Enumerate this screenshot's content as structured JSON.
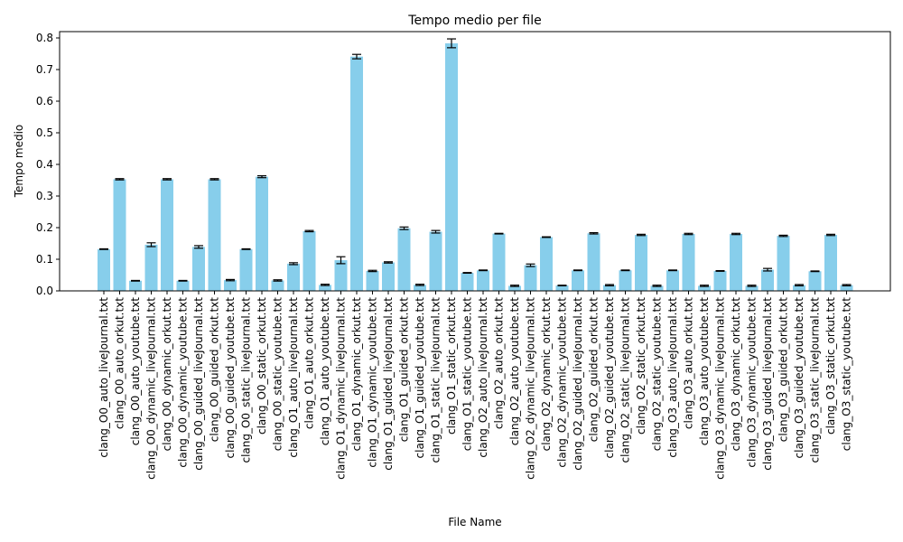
{
  "chart_data": {
    "type": "bar",
    "title": "Tempo medio per file",
    "xlabel": "File Name",
    "ylabel": "Tempo medio",
    "ylim": [
      0,
      0.82
    ],
    "yticks": [
      0.0,
      0.1,
      0.2,
      0.3,
      0.4,
      0.5,
      0.6,
      0.7,
      0.8
    ],
    "ytick_labels": [
      "0.0",
      "0.1",
      "0.2",
      "0.3",
      "0.4",
      "0.5",
      "0.6",
      "0.7",
      "0.8"
    ],
    "grid": false,
    "bar_color": "#87ceeb",
    "error_color": "#000000",
    "categories": [
      "clang_O0_auto_liveJournal.txt",
      "clang_O0_auto_orkut.txt",
      "clang_O0_auto_youtube.txt",
      "clang_O0_dynamic_liveJournal.txt",
      "clang_O0_dynamic_orkut.txt",
      "clang_O0_dynamic_youtube.txt",
      "clang_O0_guided_liveJournal.txt",
      "clang_O0_guided_orkut.txt",
      "clang_O0_guided_youtube.txt",
      "clang_O0_static_liveJournal.txt",
      "clang_O0_static_orkut.txt",
      "clang_O0_static_youtube.txt",
      "clang_O1_auto_liveJournal.txt",
      "clang_O1_auto_orkut.txt",
      "clang_O1_auto_youtube.txt",
      "clang_O1_dynamic_liveJournal.txt",
      "clang_O1_dynamic_orkut.txt",
      "clang_O1_dynamic_youtube.txt",
      "clang_O1_guided_liveJournal.txt",
      "clang_O1_guided_orkut.txt",
      "clang_O1_guided_youtube.txt",
      "clang_O1_static_liveJournal.txt",
      "clang_O1_static_orkut.txt",
      "clang_O1_static_youtube.txt",
      "clang_O2_auto_liveJournal.txt",
      "clang_O2_auto_orkut.txt",
      "clang_O2_auto_youtube.txt",
      "clang_O2_dynamic_liveJournal.txt",
      "clang_O2_dynamic_orkut.txt",
      "clang_O2_dynamic_youtube.txt",
      "clang_O2_guided_liveJournal.txt",
      "clang_O2_guided_orkut.txt",
      "clang_O2_guided_youtube.txt",
      "clang_O2_static_liveJournal.txt",
      "clang_O2_static_orkut.txt",
      "clang_O2_static_youtube.txt",
      "clang_O3_auto_liveJournal.txt",
      "clang_O3_auto_orkut.txt",
      "clang_O3_auto_youtube.txt",
      "clang_O3_dynamic_liveJournal.txt",
      "clang_O3_dynamic_orkut.txt",
      "clang_O3_dynamic_youtube.txt",
      "clang_O3_guided_liveJournal.txt",
      "clang_O3_guided_orkut.txt",
      "clang_O3_guided_youtube.txt",
      "clang_O3_static_liveJournal.txt",
      "clang_O3_static_orkut.txt",
      "clang_O3_static_youtube.txt"
    ],
    "values": [
      0.132,
      0.353,
      0.032,
      0.146,
      0.353,
      0.032,
      0.139,
      0.353,
      0.034,
      0.132,
      0.361,
      0.033,
      0.086,
      0.189,
      0.019,
      0.097,
      0.741,
      0.063,
      0.09,
      0.198,
      0.019,
      0.187,
      0.783,
      0.057,
      0.065,
      0.181,
      0.016,
      0.081,
      0.17,
      0.017,
      0.065,
      0.182,
      0.018,
      0.065,
      0.177,
      0.016,
      0.065,
      0.18,
      0.016,
      0.063,
      0.18,
      0.016,
      0.067,
      0.174,
      0.018,
      0.062,
      0.177,
      0.018
    ],
    "errors": [
      0.001,
      0.002,
      0.001,
      0.006,
      0.002,
      0.001,
      0.004,
      0.002,
      0.002,
      0.001,
      0.003,
      0.002,
      0.003,
      0.002,
      0.002,
      0.011,
      0.007,
      0.002,
      0.002,
      0.004,
      0.002,
      0.004,
      0.014,
      0.001,
      0.001,
      0.001,
      0.002,
      0.004,
      0.001,
      0.001,
      0.001,
      0.002,
      0.002,
      0.001,
      0.002,
      0.002,
      0.001,
      0.002,
      0.002,
      0.001,
      0.002,
      0.002,
      0.004,
      0.002,
      0.002,
      0.001,
      0.002,
      0.002
    ]
  }
}
